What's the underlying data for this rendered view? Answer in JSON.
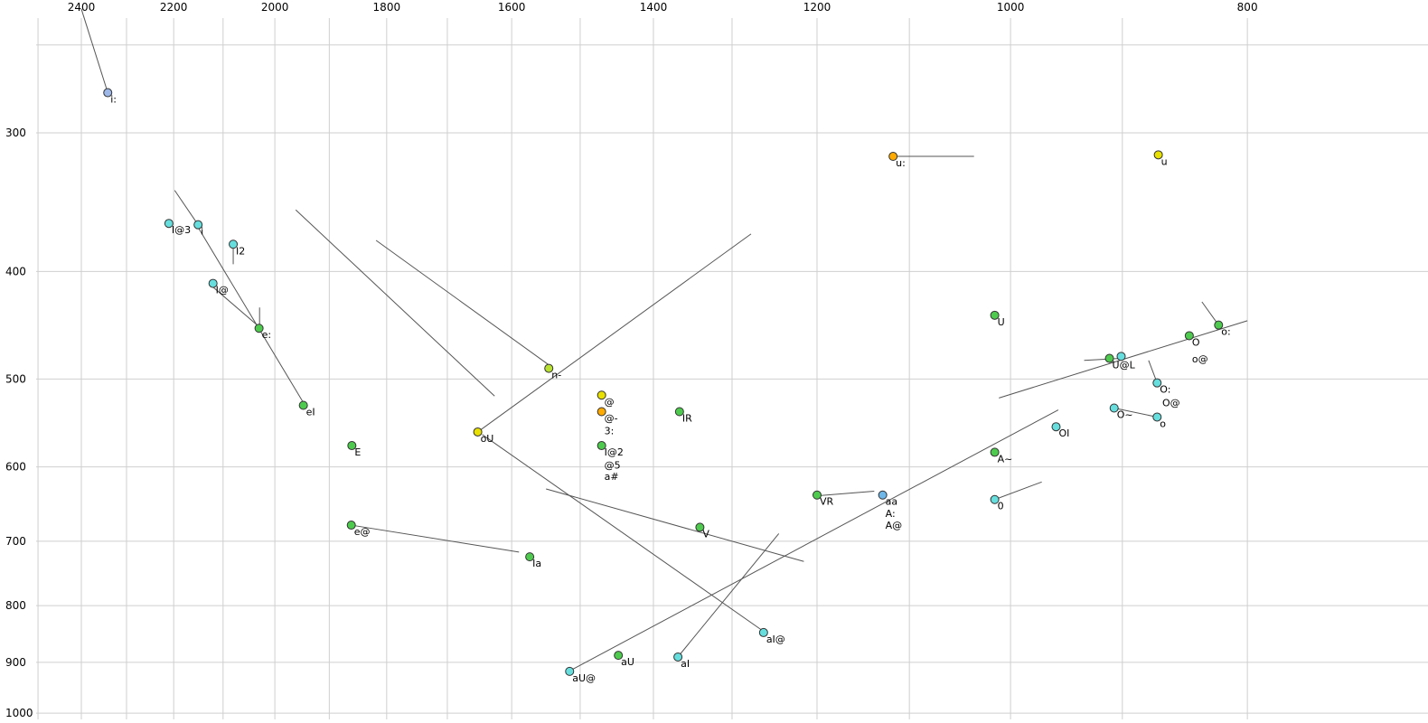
{
  "chart_data": {
    "type": "scatter",
    "title": "",
    "xlabel": "",
    "ylabel": "",
    "x_axis": {
      "position": "top",
      "scale": "log",
      "reversed": true,
      "min": 800,
      "max": 2500,
      "ticks": [
        2400,
        2200,
        2000,
        1800,
        1600,
        1400,
        1200,
        1000,
        800
      ],
      "gridlines": [
        2500,
        2400,
        2300,
        2200,
        2100,
        2000,
        1900,
        1800,
        1700,
        1600,
        1500,
        1400,
        1300,
        1200,
        1100,
        1000,
        900,
        800
      ]
    },
    "y_axis": {
      "position": "left",
      "scale": "log",
      "min": 250,
      "max": 1000,
      "ticks": [
        300,
        400,
        500,
        600,
        700,
        800,
        900,
        1000
      ],
      "gridlines": [
        250,
        300,
        400,
        500,
        600,
        700,
        800,
        900,
        1000
      ]
    },
    "grid": true,
    "colors": {
      "green": "#4ecb4e",
      "cyan": "#66dede",
      "yellow": "#e8e000",
      "orange": "#ffaa00",
      "blue": "#9db8e8",
      "skyblue": "#6fb7e8",
      "yellowgreen": "#b8e030",
      "line": "#555555",
      "grid": "#cfcfcf"
    },
    "points": [
      {
        "label": "i:",
        "f2": 2341,
        "f1": 276,
        "color": "blue",
        "dot": true
      },
      {
        "label": "u:",
        "f2": 1117,
        "f1": 315,
        "color": "orange",
        "dot": true
      },
      {
        "label": "u",
        "f2": 870,
        "f1": 314,
        "color": "yellow",
        "dot": true
      },
      {
        "label": "I@3",
        "f2": 2210,
        "f1": 362,
        "color": "cyan",
        "dot": true
      },
      {
        "label": "i",
        "f2": 2150,
        "f1": 363,
        "color": "cyan",
        "dot": true
      },
      {
        "label": "I2",
        "f2": 2080,
        "f1": 378,
        "color": "cyan",
        "dot": true
      },
      {
        "label": "I@",
        "f2": 2120,
        "f1": 410,
        "color": "cyan",
        "dot": true
      },
      {
        "label": "e:",
        "f2": 2030,
        "f1": 450,
        "color": "green",
        "dot": true
      },
      {
        "label": "U",
        "f2": 1015,
        "f1": 438,
        "color": "green",
        "dot": true
      },
      {
        "label": "o:",
        "f2": 822,
        "f1": 447,
        "color": "green",
        "dot": true
      },
      {
        "label": "O",
        "f2": 845,
        "f1": 457,
        "color": "green",
        "dot": true
      },
      {
        "label": "o@",
        "f2": 845,
        "f1": 473,
        "color": "green",
        "dot": false
      },
      {
        "label": "U@L",
        "f2": 911,
        "f1": 479,
        "color": "green",
        "dot": true
      },
      {
        "label": "",
        "f2": 901,
        "f1": 477,
        "color": "cyan",
        "dot": true
      },
      {
        "label": "n-",
        "f2": 1545,
        "f1": 489,
        "color": "yellowgreen",
        "dot": true
      },
      {
        "label": "@",
        "f2": 1470,
        "f1": 517,
        "color": "yellow",
        "dot": true
      },
      {
        "label": "@-",
        "f2": 1470,
        "f1": 535,
        "color": "orange",
        "dot": true
      },
      {
        "label": "3:",
        "f2": 1470,
        "f1": 549,
        "color": "yellow",
        "dot": false
      },
      {
        "label": "eI",
        "f2": 1947,
        "f1": 528,
        "color": "green",
        "dot": true
      },
      {
        "label": "IR",
        "f2": 1366,
        "f1": 535,
        "color": "green",
        "dot": true
      },
      {
        "label": "O:",
        "f2": 871,
        "f1": 504,
        "color": "cyan",
        "dot": true
      },
      {
        "label": "O@",
        "f2": 869,
        "f1": 518,
        "color": "cyan",
        "dot": false
      },
      {
        "label": "O~",
        "f2": 907,
        "f1": 531,
        "color": "cyan",
        "dot": true
      },
      {
        "label": "o",
        "f2": 871,
        "f1": 541,
        "color": "cyan",
        "dot": true
      },
      {
        "label": "OI",
        "f2": 958,
        "f1": 552,
        "color": "cyan",
        "dot": true
      },
      {
        "label": "oU",
        "f2": 1652,
        "f1": 558,
        "color": "yellow",
        "dot": true
      },
      {
        "label": "E",
        "f2": 1860,
        "f1": 574,
        "color": "green",
        "dot": true
      },
      {
        "label": "I@2",
        "f2": 1470,
        "f1": 574,
        "color": "green",
        "dot": true,
        "label_color": "#8a8a8a"
      },
      {
        "label": "@5",
        "f2": 1470,
        "f1": 590,
        "color": "green",
        "dot": false
      },
      {
        "label": "a#",
        "f2": 1470,
        "f1": 604,
        "color": "green",
        "dot": false
      },
      {
        "label": "A~",
        "f2": 1015,
        "f1": 582,
        "color": "green",
        "dot": true
      },
      {
        "label": "VR",
        "f2": 1200,
        "f1": 636,
        "color": "green",
        "dot": true
      },
      {
        "label": "aa",
        "f2": 1128,
        "f1": 636,
        "color": "skyblue",
        "dot": true
      },
      {
        "label": "A:",
        "f2": 1128,
        "f1": 652,
        "color": "skyblue",
        "dot": false
      },
      {
        "label": "A@",
        "f2": 1128,
        "f1": 668,
        "color": "skyblue",
        "dot": false
      },
      {
        "label": "0",
        "f2": 1015,
        "f1": 642,
        "color": "cyan",
        "dot": true
      },
      {
        "label": "e@",
        "f2": 1861,
        "f1": 677,
        "color": "green",
        "dot": true
      },
      {
        "label": "V",
        "f2": 1340,
        "f1": 680,
        "color": "green",
        "dot": true
      },
      {
        "label": "Ia",
        "f2": 1573,
        "f1": 723,
        "color": "green",
        "dot": true
      },
      {
        "label": "aI@",
        "f2": 1262,
        "f1": 846,
        "color": "cyan",
        "dot": true
      },
      {
        "label": "aU",
        "f2": 1447,
        "f1": 887,
        "color": "green",
        "dot": true
      },
      {
        "label": "aI",
        "f2": 1368,
        "f1": 890,
        "color": "cyan",
        "dot": true
      },
      {
        "label": "aU@",
        "f2": 1515,
        "f1": 917,
        "color": "cyan",
        "dot": true
      }
    ],
    "segments": [
      {
        "from": [
          2400,
          232
        ],
        "to": [
          2341,
          276
        ]
      },
      {
        "from": [
          1117,
          315
        ],
        "to": [
          1035,
          315
        ]
      },
      {
        "from": [
          2198,
          338
        ],
        "to": [
          2150,
          363
        ]
      },
      {
        "from": [
          2150,
          365
        ],
        "to": [
          1945,
          527
        ]
      },
      {
        "from": [
          2123,
          412
        ],
        "to": [
          2029,
          449
        ]
      },
      {
        "from": [
          2080,
          380
        ],
        "to": [
          2080,
          394
        ]
      },
      {
        "from": [
          2029,
          431
        ],
        "to": [
          2029,
          448
        ]
      },
      {
        "from": [
          1961,
          352
        ],
        "to": [
          1626,
          518
        ]
      },
      {
        "from": [
          1818,
          375
        ],
        "to": [
          1544,
          486
        ]
      },
      {
        "from": [
          1652,
          558
        ],
        "to": [
          1277,
          370
        ]
      },
      {
        "from": [
          1645,
          561
        ],
        "to": [
          1261,
          845
        ]
      },
      {
        "from": [
          1861,
          677
        ],
        "to": [
          1589,
          716
        ]
      },
      {
        "from": [
          1515,
          916
        ],
        "to": [
          956,
          533
        ]
      },
      {
        "from": [
          1367,
          888
        ],
        "to": [
          1244,
          689
        ]
      },
      {
        "from": [
          1549,
          628
        ],
        "to": [
          1215,
          730
        ]
      },
      {
        "from": [
          1200,
          637
        ],
        "to": [
          1137,
          631
        ]
      },
      {
        "from": [
          1015,
          642
        ],
        "to": [
          971,
          619
        ]
      },
      {
        "from": [
          1011,
          520
        ],
        "to": [
          800,
          443
        ]
      },
      {
        "from": [
          933,
          481
        ],
        "to": [
          901,
          479
        ]
      },
      {
        "from": [
          835,
          426
        ],
        "to": [
          822,
          447
        ]
      },
      {
        "from": [
          878,
          481
        ],
        "to": [
          871,
          504
        ]
      },
      {
        "from": [
          907,
          531
        ],
        "to": [
          871,
          541
        ]
      }
    ]
  }
}
